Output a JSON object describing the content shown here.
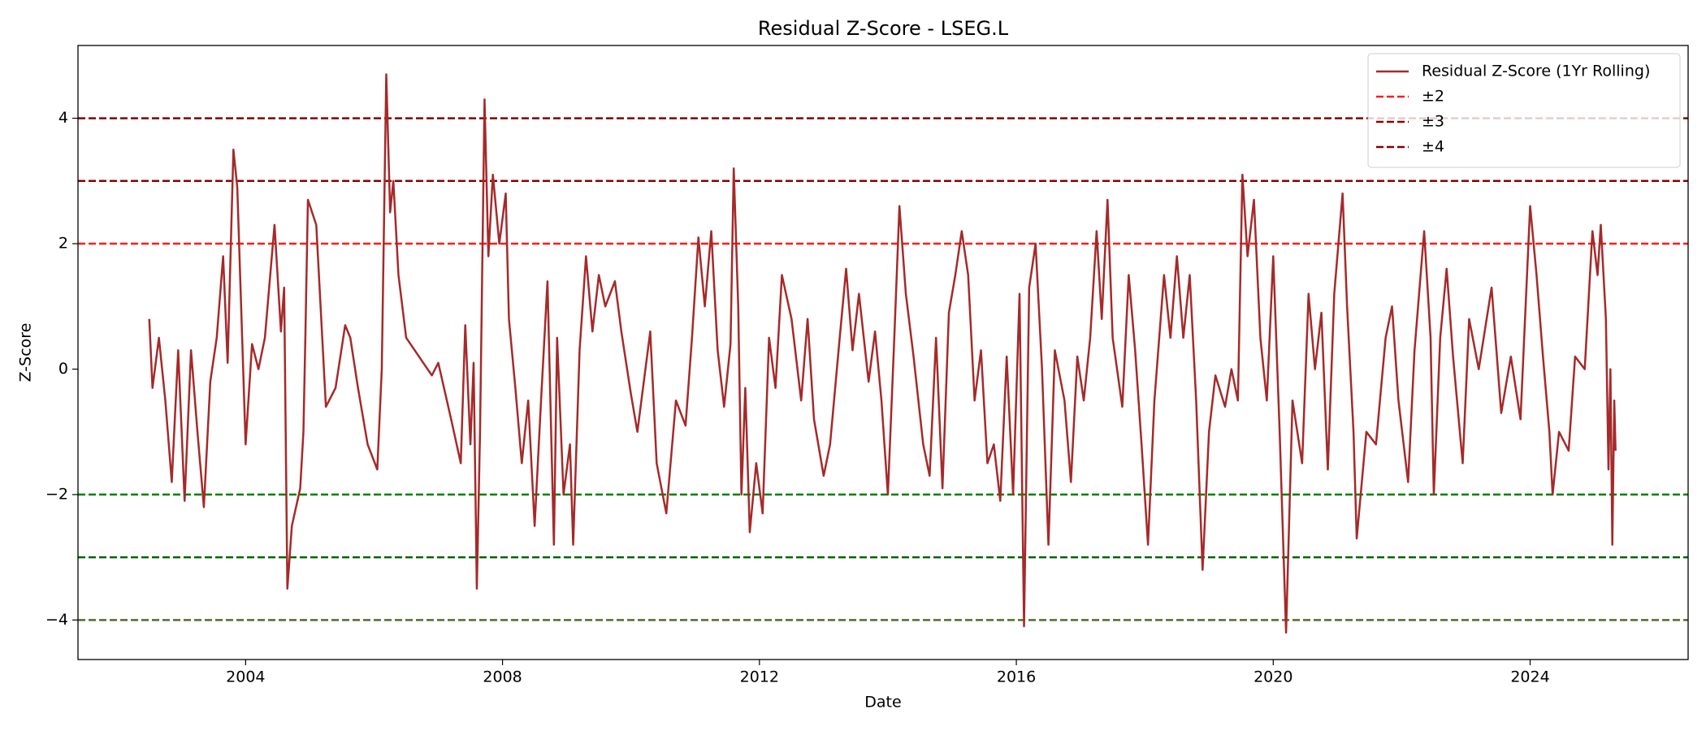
{
  "chart_data": {
    "type": "line",
    "title": "Residual Z-Score - LSEG.L",
    "x_label": "Date",
    "y_label": "Z-Score",
    "xlim": [
      2001.39,
      2026.46
    ],
    "ylim": [
      -4.63,
      5.16
    ],
    "xticks": [
      2004,
      2008,
      2012,
      2016,
      2020,
      2024
    ],
    "yticks": [
      {
        "value": -4,
        "label": "−4"
      },
      {
        "value": -2,
        "label": "−2"
      },
      0,
      2,
      4
    ],
    "grid": false,
    "legend": "upper right",
    "series": [
      {
        "name": "Residual Z-Score (1Yr Rolling)",
        "color": "#a52a2a",
        "x": [
          2002.5,
          2002.55,
          2002.65,
          2002.75,
          2002.85,
          2002.95,
          2003.05,
          2003.15,
          2003.25,
          2003.35,
          2003.45,
          2003.55,
          2003.65,
          2003.72,
          2003.81,
          2003.87,
          2004.0,
          2004.1,
          2004.2,
          2004.3,
          2004.45,
          2004.55,
          2004.6,
          2004.65,
          2004.72,
          2004.85,
          2004.9,
          2004.93,
          2004.97,
          2005.1,
          2005.25,
          2005.4,
          2005.55,
          2005.63,
          2005.75,
          2005.9,
          2006.05,
          2006.12,
          2006.19,
          2006.25,
          2006.3,
          2006.38,
          2006.5,
          2006.7,
          2006.9,
          2007.0,
          2007.2,
          2007.35,
          2007.42,
          2007.5,
          2007.55,
          2007.6,
          2007.65,
          2007.72,
          2007.78,
          2007.85,
          2007.95,
          2008.05,
          2008.1,
          2008.2,
          2008.3,
          2008.4,
          2008.5,
          2008.6,
          2008.7,
          2008.8,
          2008.85,
          2008.95,
          2009.05,
          2009.1,
          2009.2,
          2009.3,
          2009.4,
          2009.5,
          2009.6,
          2009.75,
          2009.85,
          2010.0,
          2010.1,
          2010.3,
          2010.4,
          2010.55,
          2010.7,
          2010.85,
          2010.95,
          2011.05,
          2011.15,
          2011.25,
          2011.35,
          2011.45,
          2011.55,
          2011.6,
          2011.67,
          2011.72,
          2011.78,
          2011.85,
          2011.95,
          2012.05,
          2012.15,
          2012.25,
          2012.35,
          2012.5,
          2012.65,
          2012.75,
          2012.85,
          2013.0,
          2013.1,
          2013.25,
          2013.35,
          2013.45,
          2013.55,
          2013.7,
          2013.8,
          2013.9,
          2014.0,
          2014.1,
          2014.18,
          2014.28,
          2014.4,
          2014.55,
          2014.65,
          2014.75,
          2014.85,
          2014.95,
          2015.05,
          2015.15,
          2015.25,
          2015.35,
          2015.45,
          2015.55,
          2015.65,
          2015.75,
          2015.85,
          2015.95,
          2016.05,
          2016.12,
          2016.2,
          2016.3,
          2016.4,
          2016.5,
          2016.6,
          2016.75,
          2016.85,
          2016.95,
          2017.05,
          2017.15,
          2017.25,
          2017.33,
          2017.42,
          2017.5,
          2017.65,
          2017.75,
          2017.85,
          2017.95,
          2018.05,
          2018.15,
          2018.3,
          2018.4,
          2018.5,
          2018.6,
          2018.7,
          2018.8,
          2018.9,
          2019.0,
          2019.1,
          2019.25,
          2019.35,
          2019.45,
          2019.52,
          2019.6,
          2019.7,
          2019.8,
          2019.9,
          2020.0,
          2020.1,
          2020.2,
          2020.3,
          2020.45,
          2020.55,
          2020.65,
          2020.75,
          2020.85,
          2020.95,
          2021.08,
          2021.15,
          2021.25,
          2021.3,
          2021.45,
          2021.6,
          2021.75,
          2021.85,
          2021.95,
          2022.1,
          2022.2,
          2022.35,
          2022.45,
          2022.5,
          2022.6,
          2022.7,
          2022.8,
          2022.95,
          2023.05,
          2023.2,
          2023.4,
          2023.55,
          2023.7,
          2023.85,
          2024.0,
          2024.1,
          2024.2,
          2024.3,
          2024.35,
          2024.45,
          2024.6,
          2024.7,
          2024.85,
          2024.97,
          2025.05,
          2025.1,
          2025.18,
          2025.22,
          2025.25,
          2025.28,
          2025.31,
          2025.33
        ],
        "values": [
          0.8,
          -0.3,
          0.5,
          -0.5,
          -1.8,
          0.3,
          -2.1,
          0.3,
          -1.0,
          -2.2,
          -0.2,
          0.5,
          1.8,
          0.1,
          3.5,
          2.9,
          -1.2,
          0.4,
          0.0,
          0.5,
          2.3,
          0.6,
          1.3,
          -3.5,
          -2.5,
          -1.9,
          -1.0,
          0.5,
          2.7,
          2.3,
          -0.6,
          -0.3,
          0.7,
          0.5,
          -0.3,
          -1.2,
          -1.6,
          0.0,
          4.7,
          2.5,
          3.0,
          1.5,
          0.5,
          0.2,
          -0.1,
          0.1,
          -0.8,
          -1.5,
          0.7,
          -1.2,
          0.1,
          -3.5,
          -1.0,
          4.3,
          1.8,
          3.1,
          2.0,
          2.8,
          0.8,
          -0.3,
          -1.5,
          -0.5,
          -2.5,
          -0.5,
          1.4,
          -2.8,
          0.5,
          -2.0,
          -1.2,
          -2.8,
          0.3,
          1.8,
          0.6,
          1.5,
          1.0,
          1.4,
          0.6,
          -0.4,
          -1.0,
          0.6,
          -1.5,
          -2.3,
          -0.5,
          -0.9,
          0.5,
          2.1,
          1.0,
          2.2,
          0.3,
          -0.6,
          0.4,
          3.2,
          1.0,
          -2.0,
          -0.3,
          -2.6,
          -1.5,
          -2.3,
          0.5,
          -0.3,
          1.5,
          0.8,
          -0.5,
          0.8,
          -0.8,
          -1.7,
          -1.2,
          0.5,
          1.6,
          0.3,
          1.2,
          -0.2,
          0.6,
          -0.5,
          -2.0,
          0.5,
          2.6,
          1.2,
          0.2,
          -1.2,
          -1.7,
          0.5,
          -1.9,
          0.9,
          1.5,
          2.2,
          1.5,
          -0.5,
          0.3,
          -1.5,
          -1.2,
          -2.1,
          0.2,
          -2.0,
          1.2,
          -4.1,
          1.3,
          2.0,
          0.0,
          -2.8,
          0.3,
          -0.5,
          -1.8,
          0.2,
          -0.5,
          0.5,
          2.2,
          0.8,
          2.7,
          0.5,
          -0.6,
          1.5,
          0.3,
          -1.2,
          -2.8,
          -0.5,
          1.5,
          0.5,
          1.8,
          0.5,
          1.5,
          -0.5,
          -3.2,
          -1.0,
          -0.1,
          -0.6,
          0.0,
          -0.5,
          3.1,
          1.8,
          2.7,
          0.5,
          -0.5,
          1.8,
          -1.0,
          -4.2,
          -0.5,
          -1.5,
          1.2,
          0.0,
          0.9,
          -1.6,
          1.2,
          2.8,
          1.0,
          -1.0,
          -2.7,
          -1.0,
          -1.2,
          0.5,
          1.0,
          -0.5,
          -1.8,
          0.3,
          2.2,
          0.5,
          -2.0,
          0.5,
          1.6,
          0.2,
          -1.5,
          0.8,
          0.0,
          1.3,
          -0.7,
          0.2,
          -0.8,
          2.6,
          1.5,
          0.2,
          -1.0,
          -2.0,
          -1.0,
          -1.3,
          0.2,
          0.0,
          2.2,
          1.5,
          2.3,
          0.8,
          -1.6,
          0.0,
          -2.8,
          -0.5,
          -1.3
        ]
      }
    ],
    "reference_lines": [
      {
        "name": "±2",
        "values": [
          2,
          -2
        ],
        "colors": [
          "#ff1a1a",
          "#008000"
        ]
      },
      {
        "name": "±3",
        "values": [
          3,
          -3
        ],
        "colors": [
          "#8b0000",
          "#006400"
        ]
      },
      {
        "name": "±4",
        "values": [
          4,
          -4
        ],
        "colors": [
          "#800000",
          "#556b2f"
        ]
      }
    ]
  }
}
